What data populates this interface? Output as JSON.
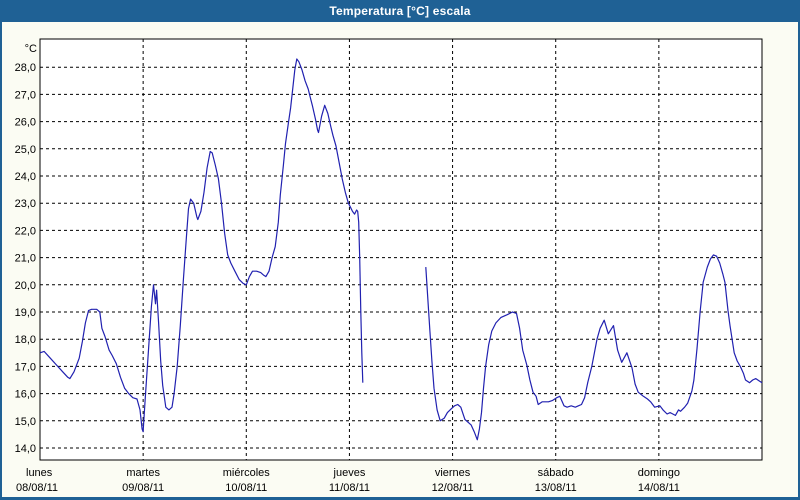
{
  "window": {
    "title": "Temperatura [°C] escala",
    "title_bar_color": "#1f6195",
    "border_color": "#1f6195",
    "body_bg": "#fbfcf3",
    "plot_bg": "#ffffff",
    "grid_color": "#000000",
    "line_color": "#2121b0"
  },
  "chart_data": {
    "type": "line",
    "title": "Temperatura [°C] escala",
    "unit_label": "°C",
    "ylabel": "°C",
    "ylim": [
      14.0,
      28.5
    ],
    "grid": "dashed",
    "legend_position": "none",
    "y_ticks": [
      28,
      27,
      26,
      25,
      24,
      23,
      22,
      21,
      20,
      19,
      18,
      17,
      16,
      15,
      14
    ],
    "y_tick_labels": [
      "28,0",
      "27,0",
      "26,0",
      "25,0",
      "24,0",
      "23,0",
      "22,0",
      "21,0",
      "20,0",
      "19,0",
      "18,0",
      "17,0",
      "16,0",
      "15,0",
      "14,0"
    ],
    "x_categories": [
      {
        "day": "lunes",
        "date": "08/08/11"
      },
      {
        "day": "martes",
        "date": "09/08/11"
      },
      {
        "day": "miércoles",
        "date": "10/08/11"
      },
      {
        "day": "jueves",
        "date": "11/08/11"
      },
      {
        "day": "viernes",
        "date": "12/08/11"
      },
      {
        "day": "sábado",
        "date": "13/08/11"
      },
      {
        "day": "domingo",
        "date": "14/08/11"
      }
    ],
    "x_unit": "days_from_2011-08-08",
    "series": [
      {
        "name": "Temperatura",
        "color": "#2121b0",
        "segments": [
          [
            [
              0.0,
              17.5
            ],
            [
              0.04,
              17.55
            ],
            [
              0.1,
              17.3
            ],
            [
              0.16,
              17.05
            ],
            [
              0.22,
              16.8
            ],
            [
              0.27,
              16.6
            ],
            [
              0.29,
              16.55
            ],
            [
              0.33,
              16.8
            ],
            [
              0.38,
              17.3
            ],
            [
              0.41,
              17.9
            ],
            [
              0.44,
              18.6
            ],
            [
              0.47,
              19.05
            ],
            [
              0.5,
              19.1
            ],
            [
              0.55,
              19.1
            ],
            [
              0.58,
              19.0
            ],
            [
              0.6,
              18.4
            ],
            [
              0.63,
              18.1
            ],
            [
              0.67,
              17.6
            ],
            [
              0.7,
              17.4
            ],
            [
              0.74,
              17.1
            ],
            [
              0.78,
              16.6
            ],
            [
              0.82,
              16.2
            ],
            [
              0.86,
              16.0
            ],
            [
              0.9,
              15.85
            ],
            [
              0.94,
              15.8
            ],
            [
              0.97,
              15.4
            ],
            [
              0.99,
              14.7
            ],
            [
              1.0,
              14.6
            ],
            [
              1.02,
              15.8
            ],
            [
              1.05,
              17.5
            ],
            [
              1.08,
              19.2
            ],
            [
              1.1,
              20.0
            ],
            [
              1.12,
              19.3
            ],
            [
              1.13,
              19.8
            ],
            [
              1.15,
              18.6
            ],
            [
              1.17,
              17.2
            ],
            [
              1.19,
              16.3
            ],
            [
              1.22,
              15.5
            ],
            [
              1.25,
              15.4
            ],
            [
              1.28,
              15.5
            ],
            [
              1.3,
              16.0
            ],
            [
              1.33,
              17.0
            ],
            [
              1.36,
              18.5
            ],
            [
              1.39,
              20.2
            ],
            [
              1.42,
              21.8
            ],
            [
              1.44,
              22.8
            ],
            [
              1.46,
              23.15
            ],
            [
              1.49,
              23.0
            ],
            [
              1.52,
              22.5
            ],
            [
              1.53,
              22.4
            ],
            [
              1.56,
              22.7
            ],
            [
              1.59,
              23.4
            ],
            [
              1.62,
              24.3
            ],
            [
              1.65,
              24.9
            ],
            [
              1.67,
              24.85
            ],
            [
              1.7,
              24.4
            ],
            [
              1.73,
              23.9
            ],
            [
              1.76,
              23.0
            ],
            [
              1.79,
              21.9
            ],
            [
              1.82,
              21.1
            ],
            [
              1.85,
              20.8
            ],
            [
              1.89,
              20.5
            ],
            [
              1.93,
              20.2
            ],
            [
              1.97,
              20.05
            ],
            [
              2.0,
              20.0
            ],
            [
              2.03,
              20.3
            ],
            [
              2.06,
              20.5
            ],
            [
              2.1,
              20.5
            ],
            [
              2.14,
              20.45
            ],
            [
              2.17,
              20.35
            ],
            [
              2.19,
              20.3
            ],
            [
              2.22,
              20.5
            ],
            [
              2.25,
              21.0
            ],
            [
              2.28,
              21.4
            ],
            [
              2.31,
              22.3
            ],
            [
              2.33,
              23.3
            ],
            [
              2.36,
              24.4
            ],
            [
              2.38,
              25.2
            ],
            [
              2.41,
              26.0
            ],
            [
              2.43,
              26.5
            ],
            [
              2.45,
              27.2
            ],
            [
              2.47,
              27.9
            ],
            [
              2.49,
              28.3
            ],
            [
              2.51,
              28.2
            ],
            [
              2.54,
              27.9
            ],
            [
              2.57,
              27.5
            ],
            [
              2.6,
              27.2
            ],
            [
              2.62,
              26.9
            ],
            [
              2.64,
              26.6
            ],
            [
              2.67,
              26.1
            ],
            [
              2.69,
              25.7
            ],
            [
              2.7,
              25.6
            ],
            [
              2.73,
              26.2
            ],
            [
              2.76,
              26.6
            ],
            [
              2.79,
              26.3
            ],
            [
              2.82,
              25.8
            ],
            [
              2.84,
              25.5
            ],
            [
              2.87,
              25.1
            ],
            [
              2.9,
              24.5
            ],
            [
              2.93,
              23.9
            ],
            [
              2.96,
              23.4
            ],
            [
              2.99,
              23.0
            ],
            [
              3.01,
              22.85
            ],
            [
              3.03,
              22.7
            ],
            [
              3.05,
              22.6
            ],
            [
              3.07,
              22.75
            ],
            [
              3.08,
              22.7
            ],
            [
              3.09,
              22.3
            ],
            [
              3.1,
              21.0
            ],
            [
              3.11,
              19.0
            ],
            [
              3.12,
              17.5
            ],
            [
              3.13,
              16.4
            ]
          ],
          [
            [
              3.74,
              20.65
            ],
            [
              3.76,
              19.5
            ],
            [
              3.78,
              18.3
            ],
            [
              3.8,
              17.2
            ],
            [
              3.82,
              16.2
            ],
            [
              3.85,
              15.4
            ],
            [
              3.88,
              15.0
            ],
            [
              3.92,
              15.1
            ],
            [
              3.95,
              15.3
            ],
            [
              3.99,
              15.45
            ],
            [
              4.02,
              15.55
            ],
            [
              4.05,
              15.6
            ],
            [
              4.08,
              15.5
            ],
            [
              4.12,
              15.05
            ],
            [
              4.15,
              14.95
            ],
            [
              4.18,
              14.85
            ],
            [
              4.21,
              14.6
            ],
            [
              4.24,
              14.3
            ],
            [
              4.26,
              14.7
            ],
            [
              4.28,
              15.3
            ],
            [
              4.3,
              16.2
            ],
            [
              4.32,
              17.0
            ],
            [
              4.35,
              17.8
            ],
            [
              4.38,
              18.3
            ],
            [
              4.42,
              18.6
            ],
            [
              4.47,
              18.8
            ],
            [
              4.53,
              18.9
            ],
            [
              4.58,
              19.0
            ],
            [
              4.62,
              18.95
            ],
            [
              4.65,
              18.4
            ],
            [
              4.68,
              17.6
            ],
            [
              4.72,
              17.05
            ],
            [
              4.75,
              16.5
            ],
            [
              4.78,
              16.05
            ],
            [
              4.81,
              15.9
            ],
            [
              4.83,
              15.6
            ],
            [
              4.87,
              15.7
            ],
            [
              4.93,
              15.7
            ],
            [
              4.97,
              15.75
            ],
            [
              5.01,
              15.85
            ],
            [
              5.04,
              15.9
            ],
            [
              5.08,
              15.55
            ],
            [
              5.11,
              15.5
            ],
            [
              5.15,
              15.55
            ],
            [
              5.19,
              15.5
            ],
            [
              5.22,
              15.55
            ],
            [
              5.25,
              15.6
            ],
            [
              5.28,
              15.85
            ],
            [
              5.31,
              16.4
            ],
            [
              5.35,
              17.0
            ],
            [
              5.4,
              18.0
            ],
            [
              5.43,
              18.4
            ],
            [
              5.47,
              18.7
            ],
            [
              5.51,
              18.2
            ],
            [
              5.56,
              18.5
            ],
            [
              5.6,
              17.6
            ],
            [
              5.64,
              17.15
            ],
            [
              5.69,
              17.5
            ],
            [
              5.74,
              16.95
            ],
            [
              5.77,
              16.35
            ],
            [
              5.8,
              16.05
            ],
            [
              5.85,
              15.9
            ],
            [
              5.89,
              15.8
            ],
            [
              5.92,
              15.7
            ],
            [
              5.96,
              15.5
            ],
            [
              6.01,
              15.55
            ],
            [
              6.04,
              15.4
            ],
            [
              6.08,
              15.25
            ],
            [
              6.11,
              15.3
            ],
            [
              6.16,
              15.2
            ],
            [
              6.19,
              15.4
            ],
            [
              6.21,
              15.35
            ],
            [
              6.25,
              15.5
            ],
            [
              6.28,
              15.65
            ],
            [
              6.32,
              16.1
            ],
            [
              6.34,
              16.5
            ],
            [
              6.37,
              17.65
            ],
            [
              6.4,
              19.0
            ],
            [
              6.43,
              20.1
            ],
            [
              6.47,
              20.65
            ],
            [
              6.5,
              20.95
            ],
            [
              6.53,
              21.1
            ],
            [
              6.56,
              21.05
            ],
            [
              6.59,
              20.8
            ],
            [
              6.62,
              20.4
            ],
            [
              6.64,
              20.1
            ],
            [
              6.67,
              19.05
            ],
            [
              6.69,
              18.5
            ],
            [
              6.71,
              18.0
            ],
            [
              6.73,
              17.5
            ],
            [
              6.76,
              17.2
            ],
            [
              6.79,
              17.0
            ],
            [
              6.82,
              16.75
            ],
            [
              6.84,
              16.5
            ],
            [
              6.88,
              16.4
            ],
            [
              6.91,
              16.5
            ],
            [
              6.94,
              16.55
            ],
            [
              6.98,
              16.45
            ],
            [
              7.0,
              16.4
            ]
          ]
        ]
      }
    ],
    "data_gap_note": "no data between day 3.13 and 3.74 (jueves)"
  }
}
